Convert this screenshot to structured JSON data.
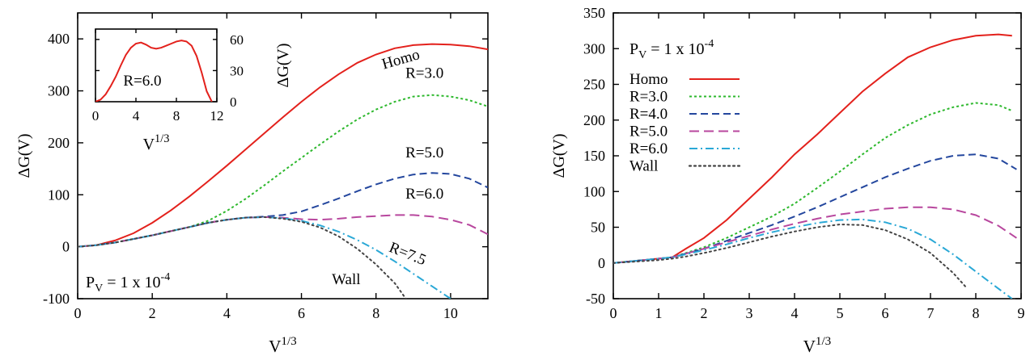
{
  "chart_data": [
    {
      "type": "line",
      "xlabel": "V",
      "xlabel_sup": "1/3",
      "ylabel": "ΔG(V)",
      "xlim": [
        0,
        11
      ],
      "ylim": [
        -100,
        450
      ],
      "xticks": [
        0,
        2,
        4,
        6,
        8,
        10
      ],
      "yticks": [
        -100,
        0,
        100,
        200,
        300,
        400
      ],
      "xtick_labels": [
        "0",
        "2",
        "4",
        "6",
        "8",
        "10"
      ],
      "ytick_labels": [
        "-100",
        "0",
        "100",
        "200",
        "300",
        "400"
      ],
      "annotations": [
        {
          "text": "Homo",
          "x": 8.7,
          "y": 352,
          "rotate": -16
        },
        {
          "text": "R=3.0",
          "x": 9.3,
          "y": 325,
          "rotate": 0
        },
        {
          "text": "R=5.0",
          "x": 9.3,
          "y": 172,
          "rotate": 0
        },
        {
          "text": "R=6.0",
          "x": 9.3,
          "y": 93,
          "rotate": 0
        },
        {
          "text": "R=7.5",
          "x": 8.8,
          "y": -22,
          "rotate": 22
        },
        {
          "text": "Wall",
          "x": 7.2,
          "y": -72,
          "rotate": 0
        }
      ],
      "pressure_label": {
        "prefix": "P",
        "sub": "V",
        "main": " = 1 x 10",
        "sup": "-4"
      },
      "series": [
        {
          "name": "Homo",
          "color": "#e3211c",
          "dash": "solid",
          "x": [
            0,
            0.5,
            1,
            1.5,
            2,
            2.5,
            3,
            3.5,
            4,
            4.5,
            5,
            5.5,
            6,
            6.5,
            7,
            7.5,
            8,
            8.5,
            9,
            9.5,
            10,
            10.5,
            11
          ],
          "y": [
            0,
            3,
            12,
            26,
            46,
            70,
            97,
            126,
            156,
            187,
            218,
            249,
            279,
            307,
            332,
            354,
            370,
            382,
            388,
            390,
            389,
            386,
            380
          ]
        },
        {
          "name": "R=3.0",
          "color": "#2db82d",
          "dash": "3,3",
          "x": [
            0,
            0.5,
            1,
            1.5,
            2,
            2.5,
            3,
            3.5,
            4,
            4.5,
            5,
            5.5,
            6,
            6.5,
            7,
            7.5,
            8,
            8.5,
            9,
            9.5,
            10,
            10.5,
            11
          ],
          "y": [
            0,
            3,
            8,
            15,
            22,
            30,
            38,
            50,
            69,
            92,
            118,
            145,
            171,
            197,
            222,
            245,
            264,
            279,
            289,
            292,
            289,
            282,
            270
          ]
        },
        {
          "name": "R=5.0",
          "color": "#24479e",
          "dash": "9,5",
          "x": [
            0,
            0.5,
            1,
            1.5,
            2,
            2.5,
            3,
            3.5,
            4,
            4.5,
            5,
            5.5,
            6,
            6.5,
            7,
            7.5,
            8,
            8.5,
            9,
            9.5,
            10,
            10.5,
            11
          ],
          "y": [
            0,
            3,
            8,
            15,
            22,
            30,
            38,
            46,
            52,
            56,
            58,
            61,
            68,
            80,
            93,
            107,
            120,
            131,
            139,
            142,
            140,
            131,
            114
          ]
        },
        {
          "name": "R=6.0",
          "color": "#b8479e",
          "dash": "12,6",
          "x": [
            0,
            0.5,
            1,
            1.5,
            2,
            2.5,
            3,
            3.5,
            4,
            4.5,
            5,
            5.5,
            6,
            6.5,
            7,
            7.5,
            8,
            8.5,
            9,
            9.5,
            10,
            10.5,
            11
          ],
          "y": [
            0,
            3,
            8,
            15,
            22,
            30,
            38,
            46,
            52,
            56,
            57,
            56,
            53,
            52,
            54,
            57,
            59,
            61,
            61,
            58,
            52,
            42,
            24
          ]
        },
        {
          "name": "R=7.5",
          "color": "#2aa8d6",
          "dash": "10,4,2,4",
          "x": [
            0,
            0.5,
            1,
            1.5,
            2,
            2.5,
            3,
            3.5,
            4,
            4.5,
            5,
            5.5,
            6,
            6.5,
            7,
            7.5,
            8,
            8.5,
            9,
            9.5,
            10
          ],
          "y": [
            0,
            3,
            8,
            15,
            22,
            30,
            38,
            46,
            52,
            56,
            57,
            55,
            50,
            41,
            29,
            13,
            -6,
            -28,
            -52,
            -76,
            -100
          ]
        },
        {
          "name": "Wall",
          "color": "#444444",
          "dash": "2,4",
          "x": [
            0,
            0.5,
            1,
            1.5,
            2,
            2.5,
            3,
            3.5,
            4,
            4.5,
            5,
            5.5,
            6,
            6.5,
            7,
            7.5,
            8,
            8.5,
            8.8
          ],
          "y": [
            0,
            3,
            8,
            15,
            22,
            30,
            38,
            46,
            52,
            56,
            57,
            54,
            48,
            37,
            20,
            -4,
            -34,
            -70,
            -100
          ]
        }
      ],
      "inset": {
        "xlim": [
          0,
          12
        ],
        "ylim": [
          0,
          70
        ],
        "xticks": [
          0,
          4,
          8,
          12
        ],
        "yticks": [
          0,
          30,
          60
        ],
        "xtick_labels": [
          "0",
          "4",
          "8",
          "12"
        ],
        "ytick_labels": [
          "0",
          "30",
          "60"
        ],
        "xlabel": "V",
        "xlabel_sup": "1/3",
        "ylabel": "ΔG(V)",
        "label": "R=6.0",
        "series": [
          {
            "name": "R=6.0",
            "color": "#e3211c",
            "x": [
              0,
              0.5,
              1,
              1.5,
              2,
              2.5,
              3,
              3.5,
              4,
              4.5,
              5,
              5.5,
              6,
              6.5,
              7,
              7.5,
              8,
              8.5,
              9,
              9.5,
              10,
              10.5,
              11,
              11.5
            ],
            "y": [
              0,
              2,
              7,
              15,
              24,
              35,
              45,
              52,
              56,
              57,
              55,
              52,
              51,
              52,
              54,
              56,
              58,
              59,
              58,
              54,
              44,
              28,
              10,
              0
            ]
          }
        ]
      }
    },
    {
      "type": "line",
      "xlabel": "V",
      "xlabel_sup": "1/3",
      "ylabel": "ΔG(V)",
      "xlim": [
        0,
        9
      ],
      "ylim": [
        -50,
        350
      ],
      "xticks": [
        0,
        1,
        2,
        3,
        4,
        5,
        6,
        7,
        8,
        9
      ],
      "yticks": [
        -50,
        0,
        50,
        100,
        150,
        200,
        250,
        300,
        350
      ],
      "xtick_labels": [
        "0",
        "1",
        "2",
        "3",
        "4",
        "5",
        "6",
        "7",
        "8",
        "9"
      ],
      "ytick_labels": [
        "-50",
        "0",
        "50",
        "100",
        "150",
        "200",
        "250",
        "300",
        "350"
      ],
      "pressure_label": {
        "prefix": "P",
        "sub": "V",
        "main": " = 1 x 10",
        "sup": "-4"
      },
      "legend": "upper-left",
      "series": [
        {
          "name": "Homo",
          "color": "#e3211c",
          "dash": "solid",
          "x": [
            0,
            0.5,
            1,
            1.3,
            1.6,
            2,
            2.5,
            3,
            3.5,
            4,
            4.5,
            5,
            5.5,
            6,
            6.5,
            7,
            7.5,
            8,
            8.5,
            8.8
          ],
          "y": [
            0,
            3,
            6,
            8,
            20,
            35,
            60,
            90,
            120,
            152,
            180,
            210,
            240,
            265,
            288,
            302,
            312,
            318,
            320,
            318
          ]
        },
        {
          "name": "R=3.0",
          "color": "#2db82d",
          "dash": "3,3",
          "x": [
            0,
            0.5,
            1,
            1.3,
            1.6,
            2,
            2.5,
            3,
            3.5,
            4,
            4.5,
            5,
            5.5,
            6,
            6.5,
            7,
            7.5,
            8,
            8.5,
            8.8
          ],
          "y": [
            0,
            3,
            6,
            8,
            14,
            22,
            35,
            50,
            65,
            83,
            105,
            128,
            152,
            175,
            193,
            208,
            218,
            224,
            221,
            213
          ]
        },
        {
          "name": "R=4.0",
          "color": "#24479e",
          "dash": "9,5",
          "x": [
            0,
            0.5,
            1,
            1.3,
            1.6,
            2,
            2.5,
            3,
            3.5,
            4,
            4.5,
            5,
            5.5,
            6,
            6.5,
            7,
            7.5,
            8,
            8.5,
            8.9
          ],
          "y": [
            0,
            3,
            6,
            8,
            13,
            20,
            31,
            42,
            53,
            65,
            78,
            92,
            106,
            120,
            132,
            143,
            150,
            152,
            146,
            131
          ]
        },
        {
          "name": "R=5.0",
          "color": "#b8479e",
          "dash": "12,6",
          "x": [
            0,
            0.5,
            1,
            1.3,
            1.6,
            2,
            2.5,
            3,
            3.5,
            4,
            4.5,
            5,
            5.5,
            6,
            6.5,
            7,
            7.5,
            8,
            8.5,
            8.9
          ],
          "y": [
            0,
            3,
            6,
            8,
            13,
            20,
            29,
            38,
            47,
            55,
            62,
            68,
            72,
            76,
            78,
            78,
            75,
            67,
            52,
            35
          ]
        },
        {
          "name": "R=6.0",
          "color": "#2aa8d6",
          "dash": "10,4,2,4",
          "x": [
            0,
            0.5,
            1,
            1.3,
            1.6,
            2,
            2.5,
            3,
            3.5,
            4,
            4.5,
            5,
            5.5,
            6,
            6.5,
            7,
            7.5,
            8,
            8.5,
            8.8
          ],
          "y": [
            0,
            3,
            6,
            8,
            12,
            18,
            26,
            35,
            43,
            50,
            56,
            60,
            61,
            57,
            48,
            33,
            12,
            -12,
            -36,
            -50
          ]
        },
        {
          "name": "Wall",
          "color": "#444444",
          "dash": "2,4",
          "x": [
            0,
            0.5,
            1,
            1.3,
            1.6,
            2,
            2.5,
            3,
            3.5,
            4,
            4.5,
            5,
            5.5,
            6,
            6.5,
            7,
            7.5,
            7.8
          ],
          "y": [
            0,
            2,
            4,
            6,
            9,
            14,
            21,
            29,
            37,
            44,
            50,
            54,
            53,
            46,
            33,
            14,
            -14,
            -35
          ]
        }
      ]
    }
  ]
}
